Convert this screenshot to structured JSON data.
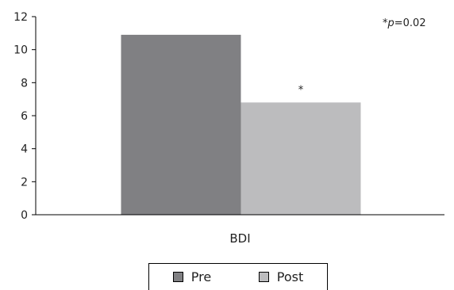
{
  "chart_data": {
    "type": "bar",
    "categories": [
      "BDI"
    ],
    "series": [
      {
        "name": "Pre",
        "values": [
          10.9
        ],
        "color": "#808083"
      },
      {
        "name": "Post",
        "values": [
          6.8
        ],
        "color": "#bcbcbe",
        "annotation": "*"
      }
    ],
    "ylim": [
      0,
      12
    ],
    "yticks": [
      0,
      2,
      4,
      6,
      8,
      10,
      12
    ],
    "note": {
      "prefix": "*",
      "italic": "p",
      "suffix": "=0.02"
    },
    "legend_position": "bottom",
    "grid": false
  }
}
